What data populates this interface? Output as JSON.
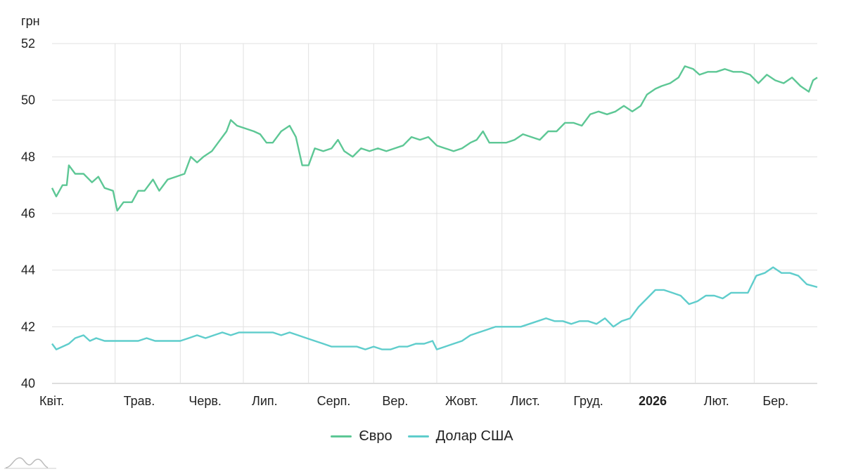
{
  "chart_data": {
    "type": "line",
    "unit_label": "грн",
    "ylim": [
      40,
      52
    ],
    "y_ticks": [
      40,
      42,
      44,
      46,
      48,
      50,
      52
    ],
    "x_range": [
      "2025-04-01",
      "2026-03-31"
    ],
    "x_ticks": [
      {
        "date": "2025-04-01",
        "label": "Квіт.",
        "bold": false
      },
      {
        "date": "2025-05-01",
        "label": "Трав.",
        "bold": false
      },
      {
        "date": "2025-06-01",
        "label": "Черв.",
        "bold": false
      },
      {
        "date": "2025-07-01",
        "label": "Лип.",
        "bold": false
      },
      {
        "date": "2025-08-01",
        "label": "Серп.",
        "bold": false
      },
      {
        "date": "2025-09-01",
        "label": "Вер.",
        "bold": false
      },
      {
        "date": "2025-10-01",
        "label": "Жовт.",
        "bold": false
      },
      {
        "date": "2025-11-01",
        "label": "Лист.",
        "bold": false
      },
      {
        "date": "2025-12-01",
        "label": "Груд.",
        "bold": false
      },
      {
        "date": "2026-01-01",
        "label": "2026",
        "bold": true
      },
      {
        "date": "2026-02-01",
        "label": "Лют.",
        "bold": false
      },
      {
        "date": "2026-03-01",
        "label": "Бер.",
        "bold": false
      }
    ],
    "grid": true,
    "legend_position": "bottom-center",
    "series": [
      {
        "name": "Євро",
        "color": "#5dc795",
        "points": [
          [
            "2025-04-01",
            46.9
          ],
          [
            "2025-04-03",
            46.6
          ],
          [
            "2025-04-06",
            47.0
          ],
          [
            "2025-04-08",
            47.0
          ],
          [
            "2025-04-09",
            47.7
          ],
          [
            "2025-04-12",
            47.4
          ],
          [
            "2025-04-16",
            47.4
          ],
          [
            "2025-04-20",
            47.1
          ],
          [
            "2025-04-23",
            47.3
          ],
          [
            "2025-04-26",
            46.9
          ],
          [
            "2025-04-30",
            46.8
          ],
          [
            "2025-05-02",
            46.1
          ],
          [
            "2025-05-05",
            46.4
          ],
          [
            "2025-05-09",
            46.4
          ],
          [
            "2025-05-12",
            46.8
          ],
          [
            "2025-05-15",
            46.8
          ],
          [
            "2025-05-19",
            47.2
          ],
          [
            "2025-05-22",
            46.8
          ],
          [
            "2025-05-26",
            47.2
          ],
          [
            "2025-05-30",
            47.3
          ],
          [
            "2025-06-03",
            47.4
          ],
          [
            "2025-06-06",
            48.0
          ],
          [
            "2025-06-09",
            47.8
          ],
          [
            "2025-06-12",
            48.0
          ],
          [
            "2025-06-16",
            48.2
          ],
          [
            "2025-06-19",
            48.5
          ],
          [
            "2025-06-23",
            48.9
          ],
          [
            "2025-06-25",
            49.3
          ],
          [
            "2025-06-28",
            49.1
          ],
          [
            "2025-07-02",
            49.0
          ],
          [
            "2025-07-06",
            48.9
          ],
          [
            "2025-07-09",
            48.8
          ],
          [
            "2025-07-12",
            48.5
          ],
          [
            "2025-07-15",
            48.5
          ],
          [
            "2025-07-19",
            48.9
          ],
          [
            "2025-07-23",
            49.1
          ],
          [
            "2025-07-26",
            48.7
          ],
          [
            "2025-07-29",
            47.7
          ],
          [
            "2025-08-01",
            47.7
          ],
          [
            "2025-08-04",
            48.3
          ],
          [
            "2025-08-08",
            48.2
          ],
          [
            "2025-08-12",
            48.3
          ],
          [
            "2025-08-15",
            48.6
          ],
          [
            "2025-08-18",
            48.2
          ],
          [
            "2025-08-22",
            48.0
          ],
          [
            "2025-08-26",
            48.3
          ],
          [
            "2025-08-30",
            48.2
          ],
          [
            "2025-09-03",
            48.3
          ],
          [
            "2025-09-07",
            48.2
          ],
          [
            "2025-09-11",
            48.3
          ],
          [
            "2025-09-15",
            48.4
          ],
          [
            "2025-09-19",
            48.7
          ],
          [
            "2025-09-23",
            48.6
          ],
          [
            "2025-09-27",
            48.7
          ],
          [
            "2025-10-01",
            48.4
          ],
          [
            "2025-10-05",
            48.3
          ],
          [
            "2025-10-09",
            48.2
          ],
          [
            "2025-10-13",
            48.3
          ],
          [
            "2025-10-17",
            48.5
          ],
          [
            "2025-10-20",
            48.6
          ],
          [
            "2025-10-23",
            48.9
          ],
          [
            "2025-10-26",
            48.5
          ],
          [
            "2025-10-30",
            48.5
          ],
          [
            "2025-11-03",
            48.5
          ],
          [
            "2025-11-07",
            48.6
          ],
          [
            "2025-11-11",
            48.8
          ],
          [
            "2025-11-15",
            48.7
          ],
          [
            "2025-11-19",
            48.6
          ],
          [
            "2025-11-23",
            48.9
          ],
          [
            "2025-11-27",
            48.9
          ],
          [
            "2025-12-01",
            49.2
          ],
          [
            "2025-12-05",
            49.2
          ],
          [
            "2025-12-09",
            49.1
          ],
          [
            "2025-12-13",
            49.5
          ],
          [
            "2025-12-17",
            49.6
          ],
          [
            "2025-12-21",
            49.5
          ],
          [
            "2025-12-25",
            49.6
          ],
          [
            "2025-12-29",
            49.8
          ],
          [
            "2026-01-02",
            49.6
          ],
          [
            "2026-01-06",
            49.8
          ],
          [
            "2026-01-09",
            50.2
          ],
          [
            "2026-01-13",
            50.4
          ],
          [
            "2026-01-16",
            50.5
          ],
          [
            "2026-01-20",
            50.6
          ],
          [
            "2026-01-24",
            50.8
          ],
          [
            "2026-01-27",
            51.2
          ],
          [
            "2026-01-31",
            51.1
          ],
          [
            "2026-02-03",
            50.9
          ],
          [
            "2026-02-07",
            51.0
          ],
          [
            "2026-02-11",
            51.0
          ],
          [
            "2026-02-15",
            51.1
          ],
          [
            "2026-02-19",
            51.0
          ],
          [
            "2026-02-23",
            51.0
          ],
          [
            "2026-02-27",
            50.9
          ],
          [
            "2026-03-03",
            50.6
          ],
          [
            "2026-03-07",
            50.9
          ],
          [
            "2026-03-11",
            50.7
          ],
          [
            "2026-03-15",
            50.6
          ],
          [
            "2026-03-19",
            50.8
          ],
          [
            "2026-03-23",
            50.5
          ],
          [
            "2026-03-27",
            50.3
          ],
          [
            "2026-03-29",
            50.7
          ],
          [
            "2026-03-31",
            50.8
          ]
        ]
      },
      {
        "name": "Долар США",
        "color": "#5fcdcc",
        "points": [
          [
            "2025-04-01",
            41.4
          ],
          [
            "2025-04-03",
            41.2
          ],
          [
            "2025-04-06",
            41.3
          ],
          [
            "2025-04-09",
            41.4
          ],
          [
            "2025-04-12",
            41.6
          ],
          [
            "2025-04-16",
            41.7
          ],
          [
            "2025-04-19",
            41.5
          ],
          [
            "2025-04-22",
            41.6
          ],
          [
            "2025-04-26",
            41.5
          ],
          [
            "2025-04-30",
            41.5
          ],
          [
            "2025-05-04",
            41.5
          ],
          [
            "2025-05-08",
            41.5
          ],
          [
            "2025-05-12",
            41.5
          ],
          [
            "2025-05-16",
            41.6
          ],
          [
            "2025-05-20",
            41.5
          ],
          [
            "2025-05-24",
            41.5
          ],
          [
            "2025-05-28",
            41.5
          ],
          [
            "2025-06-01",
            41.5
          ],
          [
            "2025-06-05",
            41.6
          ],
          [
            "2025-06-09",
            41.7
          ],
          [
            "2025-06-13",
            41.6
          ],
          [
            "2025-06-17",
            41.7
          ],
          [
            "2025-06-21",
            41.8
          ],
          [
            "2025-06-25",
            41.7
          ],
          [
            "2025-06-29",
            41.8
          ],
          [
            "2025-07-03",
            41.8
          ],
          [
            "2025-07-07",
            41.8
          ],
          [
            "2025-07-11",
            41.8
          ],
          [
            "2025-07-15",
            41.8
          ],
          [
            "2025-07-19",
            41.7
          ],
          [
            "2025-07-23",
            41.8
          ],
          [
            "2025-07-27",
            41.7
          ],
          [
            "2025-07-31",
            41.6
          ],
          [
            "2025-08-04",
            41.5
          ],
          [
            "2025-08-08",
            41.4
          ],
          [
            "2025-08-12",
            41.3
          ],
          [
            "2025-08-16",
            41.3
          ],
          [
            "2025-08-20",
            41.3
          ],
          [
            "2025-08-24",
            41.3
          ],
          [
            "2025-08-28",
            41.2
          ],
          [
            "2025-09-01",
            41.3
          ],
          [
            "2025-09-05",
            41.2
          ],
          [
            "2025-09-09",
            41.2
          ],
          [
            "2025-09-13",
            41.3
          ],
          [
            "2025-09-17",
            41.3
          ],
          [
            "2025-09-21",
            41.4
          ],
          [
            "2025-09-25",
            41.4
          ],
          [
            "2025-09-29",
            41.5
          ],
          [
            "2025-10-01",
            41.2
          ],
          [
            "2025-10-05",
            41.3
          ],
          [
            "2025-10-09",
            41.4
          ],
          [
            "2025-10-13",
            41.5
          ],
          [
            "2025-10-17",
            41.7
          ],
          [
            "2025-10-21",
            41.8
          ],
          [
            "2025-10-25",
            41.9
          ],
          [
            "2025-10-29",
            42.0
          ],
          [
            "2025-11-02",
            42.0
          ],
          [
            "2025-11-06",
            42.0
          ],
          [
            "2025-11-10",
            42.0
          ],
          [
            "2025-11-14",
            42.1
          ],
          [
            "2025-11-18",
            42.2
          ],
          [
            "2025-11-22",
            42.3
          ],
          [
            "2025-11-26",
            42.2
          ],
          [
            "2025-11-30",
            42.2
          ],
          [
            "2025-12-04",
            42.1
          ],
          [
            "2025-12-08",
            42.2
          ],
          [
            "2025-12-12",
            42.2
          ],
          [
            "2025-12-16",
            42.1
          ],
          [
            "2025-12-20",
            42.3
          ],
          [
            "2025-12-24",
            42.0
          ],
          [
            "2025-12-28",
            42.2
          ],
          [
            "2026-01-01",
            42.3
          ],
          [
            "2026-01-05",
            42.7
          ],
          [
            "2026-01-09",
            43.0
          ],
          [
            "2026-01-13",
            43.3
          ],
          [
            "2026-01-17",
            43.3
          ],
          [
            "2026-01-21",
            43.2
          ],
          [
            "2026-01-25",
            43.1
          ],
          [
            "2026-01-29",
            42.8
          ],
          [
            "2026-02-02",
            42.9
          ],
          [
            "2026-02-06",
            43.1
          ],
          [
            "2026-02-10",
            43.1
          ],
          [
            "2026-02-14",
            43.0
          ],
          [
            "2026-02-18",
            43.2
          ],
          [
            "2026-02-22",
            43.2
          ],
          [
            "2026-02-26",
            43.2
          ],
          [
            "2026-03-02",
            43.8
          ],
          [
            "2026-03-06",
            43.9
          ],
          [
            "2026-03-10",
            44.1
          ],
          [
            "2026-03-14",
            43.9
          ],
          [
            "2026-03-18",
            43.9
          ],
          [
            "2026-03-22",
            43.8
          ],
          [
            "2026-03-26",
            43.5
          ],
          [
            "2026-03-31",
            43.4
          ]
        ]
      }
    ]
  }
}
